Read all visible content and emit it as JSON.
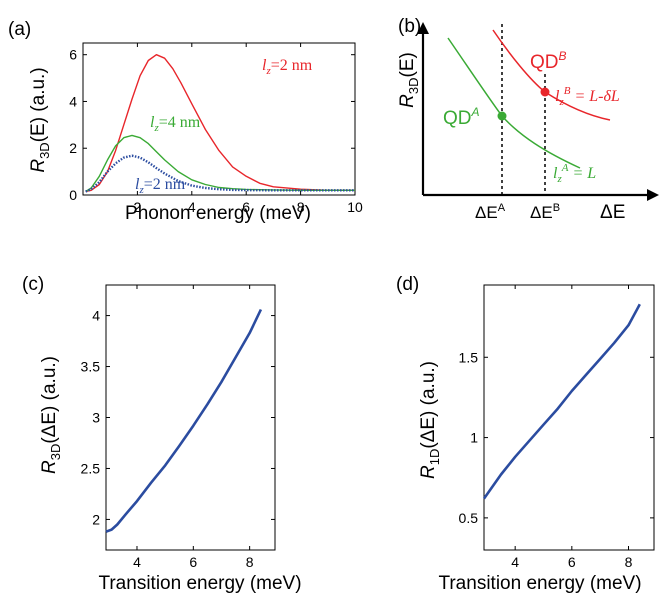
{
  "colors": {
    "red": "#e8262b",
    "green": "#3aaa35",
    "blue": "#2b4ca0",
    "black": "#000000"
  },
  "chart_data": [
    {
      "panel": "(a)",
      "type": "line",
      "xlabel": "Phonon energy (meV)",
      "ylabel_base": "R",
      "ylabel_sub": "3D",
      "ylabel_rest": "(E) (a.u.)",
      "xlim": [
        0,
        10
      ],
      "ylim": [
        0,
        6.5
      ],
      "xticks": [
        2,
        4,
        6,
        8,
        10
      ],
      "yticks": [
        0,
        2,
        4,
        6
      ],
      "grid": false,
      "series": [
        {
          "name": "l_z=2 nm (red)",
          "label_main": "l",
          "label_sub": "z",
          "label_rest": "=2 nm",
          "x": [
            0.1,
            0.3,
            0.6,
            0.9,
            1.2,
            1.5,
            1.8,
            2.1,
            2.4,
            2.7,
            3.0,
            3.3,
            3.6,
            4.0,
            4.5,
            5.0,
            5.5,
            6.0,
            6.5,
            7.0,
            8.0,
            9.0,
            10.0
          ],
          "y": [
            0.15,
            0.2,
            0.45,
            1.0,
            1.9,
            3.0,
            4.1,
            5.1,
            5.75,
            6.0,
            5.85,
            5.4,
            4.8,
            3.9,
            2.8,
            1.9,
            1.2,
            0.8,
            0.5,
            0.35,
            0.25,
            0.2,
            0.2
          ]
        },
        {
          "name": "l_z=4 nm (green)",
          "label_main": "l",
          "label_sub": "z",
          "label_rest": "=4 nm",
          "x": [
            0.1,
            0.3,
            0.6,
            0.9,
            1.2,
            1.5,
            1.8,
            2.1,
            2.4,
            2.7,
            3.0,
            3.5,
            4.0,
            4.5,
            5.0,
            5.5,
            6.0,
            7.0,
            8.0,
            9.0,
            10.0
          ],
          "y": [
            0.15,
            0.3,
            0.8,
            1.5,
            2.1,
            2.45,
            2.55,
            2.45,
            2.2,
            1.85,
            1.5,
            1.0,
            0.65,
            0.45,
            0.32,
            0.27,
            0.24,
            0.22,
            0.2,
            0.2,
            0.2
          ]
        },
        {
          "name": "l_z=2 nm (blue dotted)",
          "label_main": "l",
          "label_sub": "z",
          "label_rest": "=2 nm",
          "x": [
            0.1,
            0.3,
            0.6,
            0.9,
            1.2,
            1.5,
            1.8,
            2.1,
            2.4,
            2.7,
            3.0,
            3.5,
            4.0,
            4.5,
            5.0,
            5.5,
            6.0,
            7.0,
            8.0,
            9.0,
            10.0
          ],
          "y": [
            0.15,
            0.25,
            0.55,
            1.0,
            1.35,
            1.6,
            1.68,
            1.6,
            1.4,
            1.15,
            0.92,
            0.6,
            0.4,
            0.3,
            0.25,
            0.22,
            0.21,
            0.2,
            0.2,
            0.2,
            0.2
          ]
        }
      ]
    },
    {
      "panel": "(b)",
      "type": "line",
      "xlabel": "ΔE",
      "ylabel_base": "R",
      "ylabel_sub": "3D",
      "ylabel_rest": "(E)",
      "annotations": {
        "qdA": "QD",
        "qdA_sup": "A",
        "qdB": "QD",
        "qdB_sup": "B",
        "lzA_rest": " = L",
        "lzB_rest": " = L-δL",
        "lz_main": "l",
        "lz_sub": "z",
        "lzA_sup": "A",
        "lzB_sup": "B",
        "dEA": "ΔE",
        "dEA_sup": "A",
        "dEB": "ΔE",
        "dEB_sup": "B"
      }
    },
    {
      "panel": "(c)",
      "type": "line",
      "xlabel": "Transition energy (meV)",
      "ylabel_base": "R",
      "ylabel_sub": "3D",
      "ylabel_rest": "(ΔE) (a.u.)",
      "xlim": [
        2.9,
        8.9
      ],
      "ylim": [
        1.7,
        4.3
      ],
      "xticks": [
        4,
        6,
        8
      ],
      "yticks": [
        2,
        2.5,
        3,
        3.5,
        4
      ],
      "series": [
        {
          "x": [
            2.9,
            3.1,
            3.3,
            3.6,
            4.0,
            4.5,
            5.0,
            5.5,
            6.0,
            6.5,
            7.0,
            7.5,
            8.0,
            8.4
          ],
          "y": [
            1.88,
            1.9,
            1.95,
            2.05,
            2.18,
            2.36,
            2.53,
            2.72,
            2.92,
            3.13,
            3.35,
            3.59,
            3.83,
            4.06
          ]
        }
      ]
    },
    {
      "panel": "(d)",
      "type": "line",
      "xlabel": "Transition energy (meV)",
      "ylabel_base": "R",
      "ylabel_sub": "1D",
      "ylabel_rest": "(ΔE) (a.u.)",
      "xlim": [
        2.9,
        8.9
      ],
      "ylim": [
        0.3,
        1.95
      ],
      "xticks": [
        4,
        6,
        8
      ],
      "yticks": [
        0.5,
        1,
        1.5
      ],
      "series": [
        {
          "x": [
            2.9,
            3.5,
            4.0,
            4.5,
            5.0,
            5.5,
            6.0,
            6.5,
            7.0,
            7.5,
            8.0,
            8.4
          ],
          "y": [
            0.62,
            0.77,
            0.88,
            0.98,
            1.08,
            1.18,
            1.29,
            1.39,
            1.49,
            1.59,
            1.7,
            1.83
          ]
        }
      ]
    }
  ]
}
